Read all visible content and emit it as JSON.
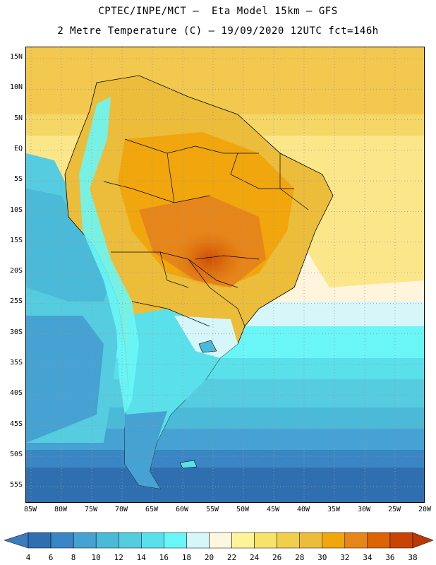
{
  "title_line1": "CPTEC/INPE/MCT –  Eta Model 15km – GFS",
  "title_line2": "2 Metre Temperature (C) – 19/09/2020 12UTC fct=146h",
  "lat_labels": [
    "15N",
    "10N",
    "5N",
    "EQ",
    "5S",
    "10S",
    "15S",
    "20S",
    "25S",
    "30S",
    "35S",
    "40S",
    "45S",
    "50S",
    "55S"
  ],
  "lon_labels": [
    "85W",
    "80W",
    "75W",
    "70W",
    "65W",
    "60W",
    "55W",
    "50W",
    "45W",
    "40W",
    "35W",
    "30W",
    "25W",
    "20W"
  ],
  "colorbar": {
    "values": [
      "4",
      "6",
      "8",
      "10",
      "12",
      "14",
      "16",
      "18",
      "20",
      "22",
      "24",
      "26",
      "28",
      "30",
      "32",
      "34",
      "36",
      "38"
    ],
    "colors": [
      "#3c7bbe",
      "#2f6fb0",
      "#3a86c4",
      "#45a2d2",
      "#4bbad8",
      "#55cce0",
      "#5ae0ea",
      "#6af6f6",
      "#d6f6fa",
      "#fff6e0",
      "#fdf49a",
      "#f7e36a",
      "#f0cf4c",
      "#ecbd3a",
      "#f0a60c",
      "#e6861a",
      "#dc6404",
      "#c84404",
      "#b83a04"
    ]
  }
}
